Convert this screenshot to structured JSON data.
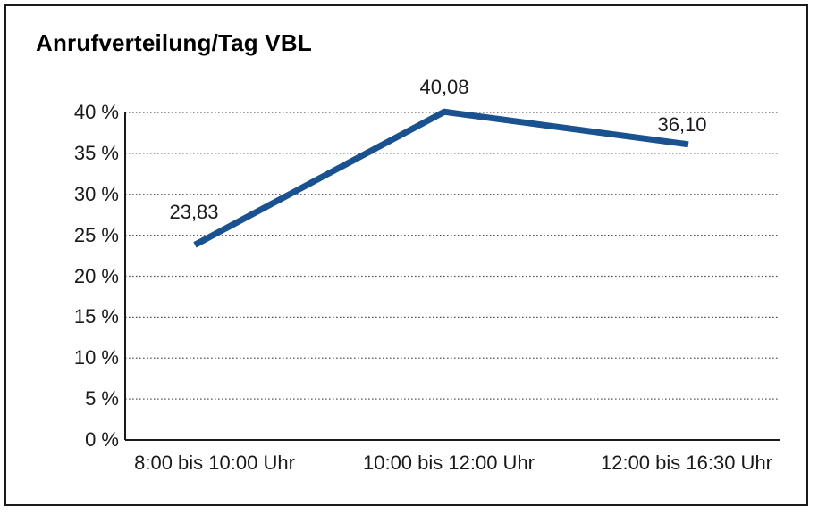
{
  "title": "Anrufverteilung/Tag VBL",
  "chart_data": {
    "type": "line",
    "title": "Anrufverteilung/Tag VBL",
    "categories": [
      "8:00 bis 10:00 Uhr",
      "10:00 bis 12:00 Uhr",
      "12:00 bis 16:30 Uhr"
    ],
    "values": [
      23.83,
      40.08,
      36.1
    ],
    "point_labels": [
      "23,83",
      "40,08",
      "36,10"
    ],
    "unit": "%",
    "y_ticks": [
      0,
      5,
      10,
      15,
      20,
      25,
      30,
      35,
      40
    ],
    "y_tick_labels": [
      "0 %",
      "5 %",
      "10 %",
      "15 %",
      "20 %",
      "25 %",
      "30 %",
      "35 %",
      "40 %"
    ],
    "ylim": [
      0,
      40
    ],
    "xlabel": "",
    "ylabel": "",
    "legend": "none",
    "grid": "horizontal-dotted",
    "line_color": "#19528F",
    "axis_color": "#1a1a1a",
    "gridline_color": "#5a5a5a",
    "text_color": "#1a1a1a"
  }
}
